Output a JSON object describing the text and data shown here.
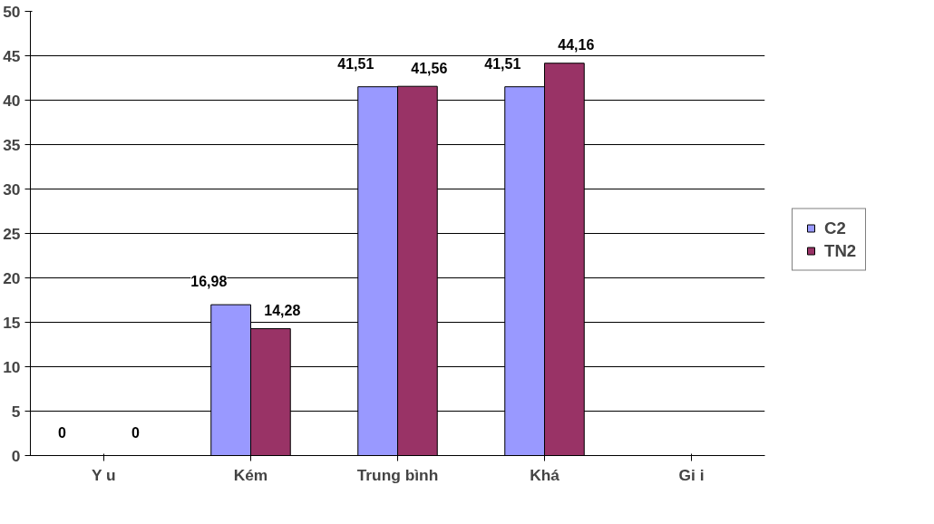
{
  "chart_data": {
    "type": "bar",
    "categories": [
      "Y u",
      "Kém",
      "Trung bình",
      "Khá",
      "Gi i"
    ],
    "series": [
      {
        "name": "C2",
        "color": "#9999ff",
        "values": [
          0,
          16.98,
          41.51,
          41.51,
          null
        ],
        "value_labels": [
          "0",
          "16,98",
          "41,51",
          "41,51",
          null
        ]
      },
      {
        "name": "TN2",
        "color": "#993366",
        "values": [
          0,
          14.28,
          41.56,
          44.16,
          null
        ],
        "value_labels": [
          "0",
          "14,28",
          "41,56",
          "44,16",
          null
        ]
      }
    ],
    "ylim": [
      0,
      50
    ],
    "yticks": [
      0,
      5,
      10,
      15,
      20,
      25,
      30,
      35,
      40,
      45,
      50
    ],
    "grid": "y",
    "legend": "right"
  }
}
